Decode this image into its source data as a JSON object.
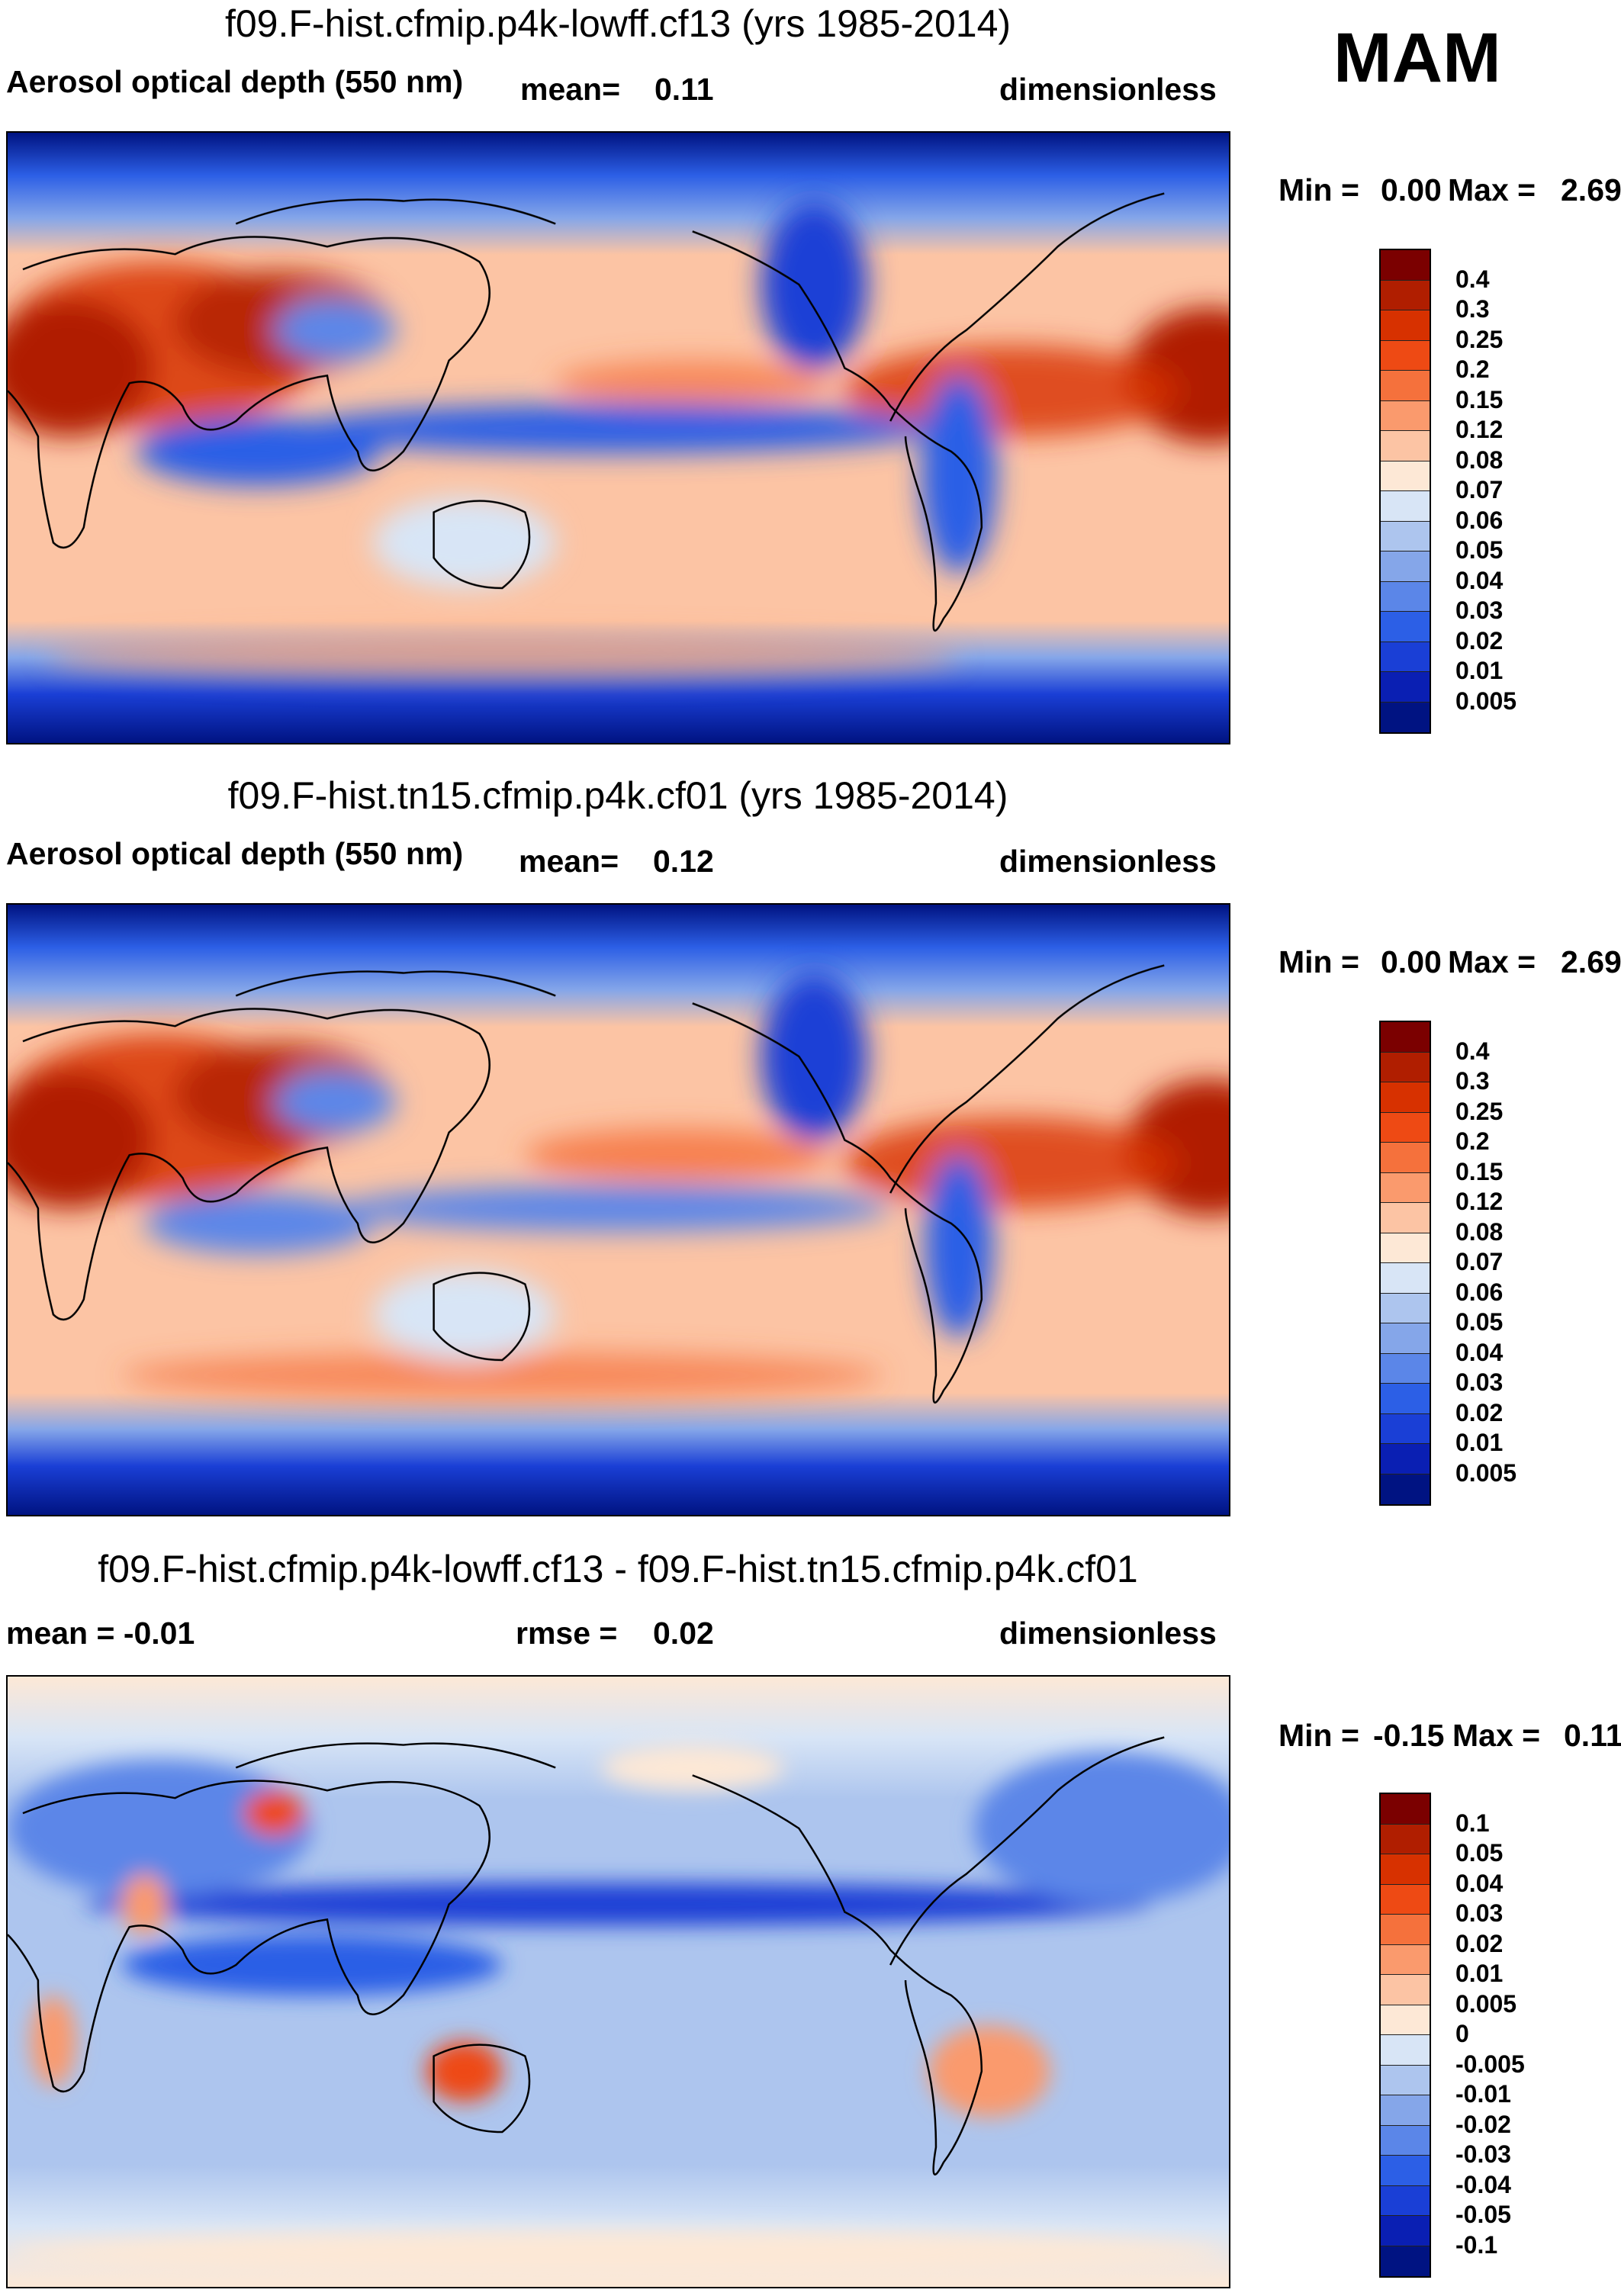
{
  "season": "MAM",
  "panels": [
    {
      "title": "f09.F-hist.cfmip.p4k-lowff.cf13 (yrs 1985-2014)",
      "left_label": "Aerosol optical depth (550 nm)",
      "mid_label": "mean=",
      "mid_value": "0.11",
      "right_label": "dimensionless",
      "min_label": "Min =",
      "min_value": "0.00",
      "max_label": "Max =",
      "max_value": "2.69",
      "colorbar": {
        "levels": [
          "0.4",
          "0.3",
          "0.25",
          "0.2",
          "0.15",
          "0.12",
          "0.08",
          "0.07",
          "0.06",
          "0.05",
          "0.04",
          "0.03",
          "0.02",
          "0.01",
          "0.005"
        ],
        "colors": [
          "#7b0000",
          "#b01e00",
          "#d73100",
          "#ee4a14",
          "#f5713c",
          "#fa9a6d",
          "#fcc4a4",
          "#fde8d6",
          "#d8e5f6",
          "#adc5ee",
          "#85a6e9",
          "#5b86e8",
          "#2c5fe6",
          "#1a3fd6",
          "#0a1fb3",
          "#001382"
        ]
      }
    },
    {
      "title": "f09.F-hist.tn15.cfmip.p4k.cf01 (yrs 1985-2014)",
      "left_label": "Aerosol optical depth (550 nm)",
      "mid_label": "mean=",
      "mid_value": "0.12",
      "right_label": "dimensionless",
      "min_label": "Min =",
      "min_value": "0.00",
      "max_label": "Max =",
      "max_value": "2.69",
      "colorbar": {
        "levels": [
          "0.4",
          "0.3",
          "0.25",
          "0.2",
          "0.15",
          "0.12",
          "0.08",
          "0.07",
          "0.06",
          "0.05",
          "0.04",
          "0.03",
          "0.02",
          "0.01",
          "0.005"
        ],
        "colors": [
          "#7b0000",
          "#b01e00",
          "#d73100",
          "#ee4a14",
          "#f5713c",
          "#fa9a6d",
          "#fcc4a4",
          "#fde8d6",
          "#d8e5f6",
          "#adc5ee",
          "#85a6e9",
          "#5b86e8",
          "#2c5fe6",
          "#1a3fd6",
          "#0a1fb3",
          "#001382"
        ]
      }
    },
    {
      "title": "f09.F-hist.cfmip.p4k-lowff.cf13 - f09.F-hist.tn15.cfmip.p4k.cf01",
      "left_label": "mean =  -0.01",
      "mid_label": "rmse =",
      "mid_value": "0.02",
      "right_label": "dimensionless",
      "min_label": "Min =",
      "min_value": "-0.15",
      "max_label": "Max =",
      "max_value": "0.11",
      "colorbar": {
        "levels": [
          "0.1",
          "0.05",
          "0.04",
          "0.03",
          "0.02",
          "0.01",
          "0.005",
          "0",
          "-0.005",
          "-0.01",
          "-0.02",
          "-0.03",
          "-0.04",
          "-0.05",
          "-0.1"
        ],
        "colors": [
          "#7b0000",
          "#b01e00",
          "#d73100",
          "#ee4a14",
          "#f5713c",
          "#fa9a6d",
          "#fcc4a4",
          "#fde8d6",
          "#d8e5f6",
          "#adc5ee",
          "#85a6e9",
          "#5b86e8",
          "#2c5fe6",
          "#1a3fd6",
          "#0a1fb3",
          "#001382"
        ]
      }
    }
  ]
}
